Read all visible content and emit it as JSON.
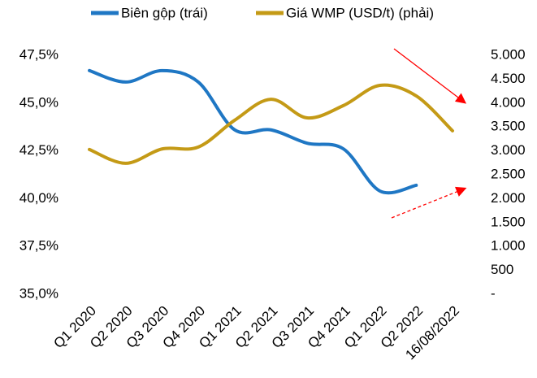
{
  "chart_data": {
    "type": "line",
    "categories": [
      "Q1 2020",
      "Q2 2020",
      "Q3 2020",
      "Q4 2020",
      "Q1 2021",
      "Q2 2021",
      "Q3 2021",
      "Q4 2021",
      "Q1 2022",
      "Q2 2022",
      "16/08/2022"
    ],
    "series": [
      {
        "name": "Biên gộp (trái)",
        "color": "#1f77c4",
        "values": [
          46.7,
          46.1,
          46.7,
          46.1,
          43.6,
          43.6,
          42.9,
          42.6,
          40.4,
          40.7,
          null
        ]
      },
      {
        "name": "Giá WMP (USD/t) (phải)",
        "color": "#c49a16",
        "axis": "y2",
        "values": [
          3030,
          2740,
          3040,
          3080,
          3640,
          4080,
          3690,
          3950,
          4370,
          4150,
          3420
        ]
      }
    ],
    "ylim": [
      35,
      47.5
    ],
    "yticks": [
      {
        "value": 35,
        "label": "35,0%"
      },
      {
        "value": 37.5,
        "label": "37,5%"
      },
      {
        "value": 40,
        "label": "40,0%"
      },
      {
        "value": 42.5,
        "label": "42,5%"
      },
      {
        "value": 45,
        "label": "45,0%"
      },
      {
        "value": 47.5,
        "label": "47,5%"
      }
    ],
    "y2lim": [
      0,
      5000
    ],
    "y2ticks": [
      {
        "value": 0,
        "label": "-"
      },
      {
        "value": 500,
        "label": "500"
      },
      {
        "value": 1000,
        "label": "1.000"
      },
      {
        "value": 1500,
        "label": "1.500"
      },
      {
        "value": 2000,
        "label": "2.000"
      },
      {
        "value": 2500,
        "label": "2.500"
      },
      {
        "value": 3000,
        "label": "3.000"
      },
      {
        "value": 3500,
        "label": "3.500"
      },
      {
        "value": 4000,
        "label": "4.000"
      },
      {
        "value": 4500,
        "label": "4.500"
      },
      {
        "value": 5000,
        "label": "5.000"
      }
    ],
    "grid": false,
    "legend": "top"
  }
}
